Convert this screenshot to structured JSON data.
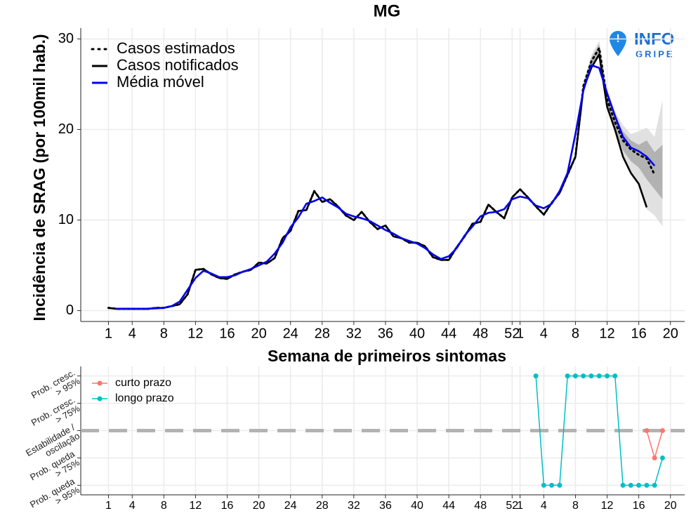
{
  "logo": {
    "line1": "INFO",
    "line2": "GRIPE"
  },
  "chart_data": [
    {
      "type": "line",
      "title": "MG",
      "x_label": "Semana de primeiros sintomas",
      "y_label": "Incidência de SRAG (por 100mil hab.)",
      "x": [
        1,
        2,
        3,
        4,
        5,
        6,
        7,
        8,
        9,
        10,
        11,
        12,
        13,
        14,
        15,
        16,
        17,
        18,
        19,
        20,
        21,
        22,
        23,
        24,
        25,
        26,
        27,
        28,
        29,
        30,
        31,
        32,
        33,
        34,
        35,
        36,
        37,
        38,
        39,
        40,
        41,
        42,
        43,
        44,
        45,
        46,
        47,
        48,
        49,
        50,
        51,
        52,
        53,
        54,
        55,
        56,
        57,
        58,
        59,
        60,
        61,
        62,
        63,
        64,
        65,
        66,
        67,
        68,
        69,
        70,
        71
      ],
      "series": [
        {
          "name": "Casos estimados",
          "color": "#000000",
          "style": "dotted",
          "values": [
            0.3,
            0.2,
            0.2,
            0.2,
            0.2,
            0.2,
            0.3,
            0.3,
            0.5,
            0.7,
            1.8,
            4.5,
            4.6,
            4.0,
            3.6,
            3.5,
            4.0,
            4.3,
            4.5,
            5.3,
            5.2,
            5.8,
            8.0,
            8.8,
            11.0,
            11.1,
            13.2,
            12.0,
            12.3,
            11.5,
            10.5,
            10.0,
            10.9,
            9.8,
            9.0,
            9.4,
            8.2,
            8.0,
            7.5,
            7.5,
            7.1,
            5.9,
            5.6,
            5.6,
            7.0,
            8.2,
            9.6,
            9.8,
            11.7,
            10.9,
            10.2,
            12.5,
            13.4,
            12.5,
            11.5,
            10.6,
            11.9,
            13.0,
            15.0,
            17.0,
            24.8,
            27.5,
            29.0,
            23.3,
            20.8,
            18.8,
            17.8,
            17.2,
            16.8,
            15.0,
            null
          ]
        },
        {
          "name": "Casos notificados",
          "color": "#000000",
          "style": "solid",
          "values": [
            0.3,
            0.2,
            0.2,
            0.2,
            0.2,
            0.2,
            0.3,
            0.3,
            0.5,
            0.7,
            1.8,
            4.5,
            4.6,
            4.0,
            3.6,
            3.5,
            4.0,
            4.3,
            4.5,
            5.3,
            5.2,
            5.8,
            8.0,
            8.8,
            11.0,
            11.1,
            13.2,
            12.0,
            12.3,
            11.5,
            10.5,
            10.0,
            10.9,
            9.8,
            9.0,
            9.4,
            8.2,
            8.0,
            7.5,
            7.5,
            7.1,
            5.9,
            5.6,
            5.6,
            7.0,
            8.2,
            9.6,
            9.8,
            11.7,
            10.9,
            10.2,
            12.5,
            13.4,
            12.5,
            11.5,
            10.6,
            11.9,
            13.0,
            15.0,
            17.0,
            24.5,
            26.8,
            28.3,
            22.5,
            20.0,
            17.0,
            15.2,
            14.0,
            11.4,
            null,
            null
          ]
        },
        {
          "name": "Média móvel",
          "color": "#0000ee",
          "style": "solid",
          "values": [
            null,
            0.2,
            0.2,
            0.2,
            0.2,
            0.2,
            0.25,
            0.3,
            0.5,
            1.0,
            2.3,
            3.6,
            4.4,
            4.1,
            3.7,
            3.7,
            3.9,
            4.3,
            4.6,
            5.0,
            5.4,
            6.3,
            7.5,
            9.2,
            10.3,
            11.8,
            12.1,
            12.5,
            11.9,
            11.4,
            10.7,
            10.4,
            10.2,
            9.9,
            9.4,
            8.9,
            8.5,
            8.0,
            7.7,
            7.4,
            6.9,
            6.2,
            5.7,
            6.0,
            6.9,
            8.3,
            9.3,
            10.4,
            10.8,
            10.9,
            11.2,
            12.3,
            12.6,
            12.4,
            11.6,
            11.3,
            11.8,
            13.2,
            15.2,
            19.5,
            24.3,
            27.1,
            26.8,
            24.0,
            21.5,
            19.2,
            18.0,
            17.6,
            17.0,
            16.0,
            null
          ]
        }
      ],
      "bands": [
        {
          "color": "#dcdcdc",
          "x": [
            60,
            61,
            62,
            63,
            64,
            65,
            66,
            67,
            68,
            69,
            70,
            71
          ],
          "lower": [
            17,
            24.3,
            26.7,
            28,
            22.2,
            19.5,
            16.8,
            15,
            13.8,
            11.2,
            10.5,
            9.3
          ],
          "upper": [
            17,
            25.2,
            28.2,
            29.8,
            24.5,
            22,
            20.5,
            19.5,
            19.8,
            20.2,
            19.2,
            23.3
          ]
        },
        {
          "color": "#a9a9a9",
          "x": [
            60,
            61,
            62,
            63,
            64,
            65,
            66,
            67,
            68,
            69,
            70,
            71
          ],
          "lower": [
            17,
            24.5,
            27,
            28.4,
            22.7,
            20,
            17.7,
            16.5,
            15.8,
            14.5,
            13.4,
            12.3
          ],
          "upper": [
            17,
            25,
            27.9,
            29.4,
            24,
            21.5,
            19.8,
            18.8,
            18.3,
            18.8,
            17.5,
            18.3
          ]
        }
      ],
      "xlim": [
        -2.5,
        73.8
      ],
      "ylim": [
        -1.2,
        31.2
      ],
      "xticks": [
        1,
        4,
        8,
        12,
        16,
        20,
        24,
        28,
        32,
        36,
        40,
        44,
        48,
        52,
        {
          "value": 53,
          "label": "1"
        },
        {
          "value": 56,
          "label": "4"
        },
        {
          "value": 60,
          "label": "8"
        },
        {
          "value": 64,
          "label": "12"
        },
        {
          "value": 68,
          "label": "16"
        },
        {
          "value": 72,
          "label": "20"
        }
      ],
      "yticks": [
        0,
        10,
        20,
        30
      ],
      "grid": true,
      "legend": "top-left"
    },
    {
      "type": "line",
      "markers": true,
      "series": [
        {
          "name": "curto prazo",
          "color": "#f8766d",
          "x": [
            69,
            70,
            71
          ],
          "values": [
            0,
            -1,
            0
          ]
        },
        {
          "name": "longo prazo",
          "color": "#00bfc4",
          "x": [
            55,
            56,
            57,
            58,
            59,
            60,
            61,
            62,
            63,
            64,
            65,
            66,
            67,
            68,
            69,
            70,
            71
          ],
          "values": [
            2,
            -2,
            -2,
            -2,
            2,
            2,
            2,
            2,
            2,
            2,
            2,
            -2,
            -2,
            -2,
            -2,
            -2,
            -1
          ]
        }
      ],
      "hline": 0,
      "xlim": [
        -2.5,
        73.8
      ],
      "ylim": [
        -2.35,
        2.35
      ],
      "xticks": [
        1,
        4,
        8,
        12,
        16,
        20,
        24,
        28,
        32,
        36,
        40,
        44,
        48,
        52,
        {
          "value": 53,
          "label": "1"
        },
        {
          "value": 56,
          "label": "4"
        },
        {
          "value": 60,
          "label": "8"
        },
        {
          "value": 64,
          "label": "12"
        },
        {
          "value": 68,
          "label": "16"
        },
        {
          "value": 72,
          "label": "20"
        }
      ],
      "yticks": [
        {
          "value": 2,
          "label": "Prob. cresc.\n> 95%"
        },
        {
          "value": 1,
          "label": "Prob. cresc.\n> 75%"
        },
        {
          "value": 0,
          "label": "Estabilidade /\noscilação"
        },
        {
          "value": -1,
          "label": "Prob. queda\n> 75%"
        },
        {
          "value": -2,
          "label": "Prob. queda\n> 95%"
        }
      ],
      "grid": true,
      "legend": "top-left"
    }
  ]
}
